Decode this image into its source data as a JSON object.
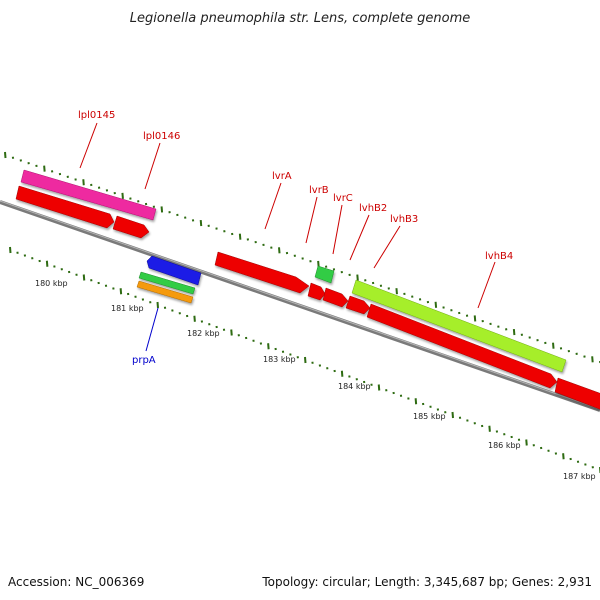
{
  "title": "Legionella pneumophila str. Lens, complete genome",
  "footer": {
    "accession": "Accession: NC_006369",
    "topology": "Topology: circular; Length: 3,345,687 bp; Genes: 2,931"
  },
  "colors": {
    "backbone": "#7a7a7a",
    "tick": "#2e6b12",
    "label_red": "#cc0000",
    "label_blue": "#0000cc",
    "red": "#ee0000",
    "magenta": "#ee2aa0",
    "lime": "#a6ee2a",
    "green": "#33cc44",
    "blue": "#1a1ae6",
    "orange": "#f59a10"
  },
  "ruler_labels": [
    "180 kbp",
    "181 kbp",
    "182 kbp",
    "183 kbp",
    "184 kbp",
    "185 kbp",
    "186 kbp",
    "187 kbp"
  ],
  "gene_labels": [
    {
      "id": "lpl0145",
      "text": "lpl0145",
      "color": "red"
    },
    {
      "id": "lpl0146",
      "text": "lpl0146",
      "color": "red"
    },
    {
      "id": "lvra",
      "text": "lvrA",
      "color": "red"
    },
    {
      "id": "lvrb",
      "text": "lvrB",
      "color": "red"
    },
    {
      "id": "lvrc",
      "text": "lvrC",
      "color": "red"
    },
    {
      "id": "lvhb2",
      "text": "lvhB2",
      "color": "red"
    },
    {
      "id": "lvhb3",
      "text": "lvhB3",
      "color": "red"
    },
    {
      "id": "lvhb4",
      "text": "lvhB4",
      "color": "red"
    },
    {
      "id": "prpa",
      "text": "prpA",
      "color": "blue"
    }
  ]
}
